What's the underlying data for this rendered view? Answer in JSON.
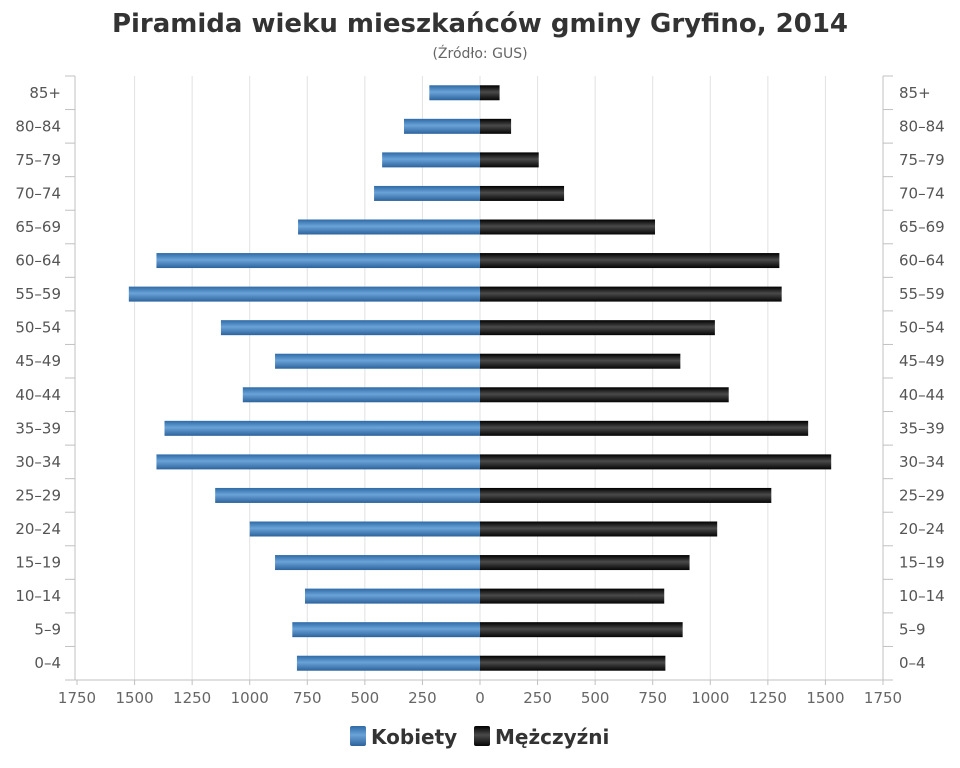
{
  "chart_data": {
    "type": "bar",
    "orientation": "horizontal-diverging",
    "title": "Piramida wieku mieszkańców gminy Gryfino, 2014",
    "subtitle": "(Źródło: GUS)",
    "categories": [
      "0–4",
      "5–9",
      "10–14",
      "15–19",
      "20–24",
      "25–29",
      "30–34",
      "35–39",
      "40–44",
      "45–49",
      "50–54",
      "55–59",
      "60–64",
      "65–69",
      "70–74",
      "75–79",
      "80–84",
      "85+"
    ],
    "series": [
      {
        "name": "Kobiety",
        "color": "#3d7ab8",
        "side": "left",
        "values": [
          795,
          815,
          760,
          890,
          1000,
          1150,
          1405,
          1370,
          1030,
          890,
          1125,
          1525,
          1405,
          790,
          460,
          425,
          330,
          220
        ]
      },
      {
        "name": "Mężczyźni",
        "color": "#1a1a1a",
        "side": "right",
        "values": [
          805,
          880,
          800,
          910,
          1030,
          1265,
          1525,
          1425,
          1080,
          870,
          1020,
          1310,
          1300,
          760,
          365,
          255,
          135,
          85
        ]
      }
    ],
    "x_ticks": [
      "1750",
      "1500",
      "1250",
      "1000",
      "750",
      "500",
      "250",
      "0",
      "250",
      "500",
      "750",
      "1000",
      "1250",
      "1500",
      "1750"
    ],
    "xlim": [
      -1750,
      1750
    ],
    "grid": true,
    "legend_position": "bottom-center"
  }
}
